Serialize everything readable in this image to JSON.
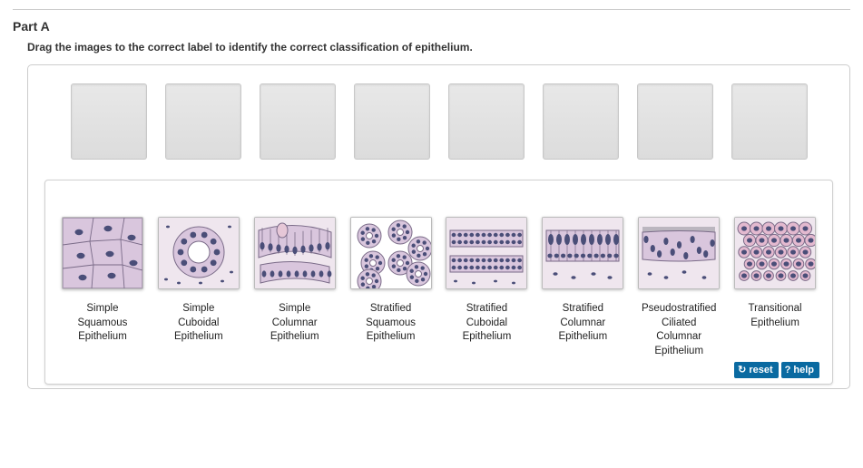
{
  "part_label": "Part A",
  "instructions": "Drag the images to the correct label to identify the correct classification of epithelium.",
  "slot_count": 8,
  "tiles": [
    {
      "name": "simple-squamous",
      "label": "Simple\nSquamous\nEpithelium"
    },
    {
      "name": "simple-cuboidal",
      "label": "Simple\nCuboidal\nEpithelium"
    },
    {
      "name": "simple-columnar",
      "label": "Simple\nColumnar\nEpithelium"
    },
    {
      "name": "stratified-squamous",
      "label": "Stratified\nSquamous\nEpithelium"
    },
    {
      "name": "stratified-cuboidal",
      "label": "Stratified\nCuboidal\nEpithelium"
    },
    {
      "name": "stratified-columnar",
      "label": "Stratified\nColumnar\nEpithelium"
    },
    {
      "name": "pseudostratified-ciliated-columnar",
      "label": "Pseudostratified\nCiliated\nColumnar\nEpithelium"
    },
    {
      "name": "transitional",
      "label": "Transitional\nEpithelium"
    }
  ],
  "buttons": {
    "reset": "reset",
    "help": "help"
  },
  "palette": {
    "cell_fill_light": "#d9c6dd",
    "cell_fill_pink": "#e6c7d7",
    "cell_fill_rose": "#e3b9cf",
    "cell_stroke": "#7a6b88",
    "nucleus": "#4a4e78",
    "basement": "#c7a9bf",
    "ct_bg": "#efe6ee",
    "cilia": "#6d6d78"
  }
}
